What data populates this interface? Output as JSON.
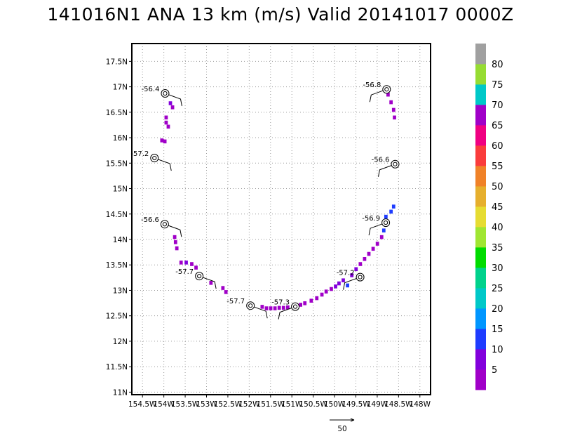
{
  "title": "141016N1 ANA 13 km (m/s) Valid 20141017 0000Z",
  "chart_data": {
    "type": "scatter",
    "title": "141016N1 ANA 13 km (m/s) Valid 20141017 0000Z",
    "xlabel": "",
    "ylabel": "",
    "grid": true,
    "xlim": [
      -154.75,
      -147.75
    ],
    "ylim": [
      10.95,
      17.85
    ],
    "x_ticks": [
      -154.5,
      -154,
      -153.5,
      -153,
      -152.5,
      -152,
      -151.5,
      -151,
      -150.5,
      -150,
      -149.5,
      -149,
      -148.5,
      -148
    ],
    "x_tick_labels": [
      "154.5W",
      "154W",
      "153.5W",
      "153W",
      "152.5W",
      "152W",
      "151.5W",
      "151W",
      "150.5W",
      "150W",
      "149.5W",
      "149W",
      "148.5W",
      "148W"
    ],
    "y_ticks": [
      11,
      11.5,
      12,
      12.5,
      13,
      13.5,
      14,
      14.5,
      15,
      15.5,
      16,
      16.5,
      17,
      17.5
    ],
    "y_tick_labels": [
      "11N",
      "11.5N",
      "12N",
      "12.5N",
      "13N",
      "13.5N",
      "14N",
      "14.5N",
      "15N",
      "15.5N",
      "16N",
      "16.5N",
      "17N",
      "17.5N"
    ],
    "colorbar": {
      "labels": [
        "5",
        "10",
        "15",
        "20",
        "25",
        "30",
        "35",
        "40",
        "45",
        "50",
        "55",
        "60",
        "65",
        "70",
        "75",
        "80"
      ],
      "colors": [
        "#a000c8",
        "#8200dc",
        "#1e3cff",
        "#0096ff",
        "#00c8c8",
        "#00d28c",
        "#00dc00",
        "#a0e632",
        "#e6dc32",
        "#e6af2d",
        "#f08228",
        "#fa3c3c",
        "#f00082",
        "#a000c8",
        "#00c8c8",
        "#96dc32",
        "#a0a0a0"
      ]
    },
    "wind_arrow_label": "50",
    "observations": [
      {
        "lon": -153.97,
        "lat": 16.87,
        "label": "-56.4"
      },
      {
        "lon": -154.22,
        "lat": 15.6,
        "label": "-57.2"
      },
      {
        "lon": -153.98,
        "lat": 14.3,
        "label": "-56.6"
      },
      {
        "lon": -153.17,
        "lat": 13.28,
        "label": "-57.7"
      },
      {
        "lon": -151.97,
        "lat": 12.7,
        "label": "-57.7"
      },
      {
        "lon": -150.92,
        "lat": 12.68,
        "label": "-57.3"
      },
      {
        "lon": -149.4,
        "lat": 13.26,
        "label": "-57.2"
      },
      {
        "lon": -148.8,
        "lat": 14.33,
        "label": "-56.9"
      },
      {
        "lon": -148.58,
        "lat": 15.48,
        "label": "-56.6"
      },
      {
        "lon": -148.78,
        "lat": 16.95,
        "label": "-56.8"
      }
    ],
    "swath_cells": [
      {
        "lon": -153.85,
        "lat": 16.68,
        "v": 1
      },
      {
        "lon": -153.8,
        "lat": 16.6,
        "v": 0
      },
      {
        "lon": -153.95,
        "lat": 16.4,
        "v": 0
      },
      {
        "lon": -153.95,
        "lat": 16.3,
        "v": 0
      },
      {
        "lon": -153.9,
        "lat": 16.22,
        "v": 0
      },
      {
        "lon": -154.05,
        "lat": 15.95,
        "v": 0
      },
      {
        "lon": -153.98,
        "lat": 15.93,
        "v": 0
      },
      {
        "lon": -153.75,
        "lat": 14.05,
        "v": 0
      },
      {
        "lon": -153.73,
        "lat": 13.95,
        "v": 0
      },
      {
        "lon": -153.7,
        "lat": 13.83,
        "v": 0
      },
      {
        "lon": -153.6,
        "lat": 13.55,
        "v": 0
      },
      {
        "lon": -153.48,
        "lat": 13.55,
        "v": 1
      },
      {
        "lon": -153.35,
        "lat": 13.52,
        "v": 0
      },
      {
        "lon": -153.25,
        "lat": 13.45,
        "v": 0
      },
      {
        "lon": -152.9,
        "lat": 13.15,
        "v": 0
      },
      {
        "lon": -152.62,
        "lat": 13.05,
        "v": 0
      },
      {
        "lon": -152.55,
        "lat": 12.97,
        "v": 0
      },
      {
        "lon": -151.7,
        "lat": 12.68,
        "v": 0
      },
      {
        "lon": -151.6,
        "lat": 12.65,
        "v": 0
      },
      {
        "lon": -151.5,
        "lat": 12.65,
        "v": 0
      },
      {
        "lon": -151.4,
        "lat": 12.65,
        "v": 0
      },
      {
        "lon": -151.3,
        "lat": 12.66,
        "v": 0
      },
      {
        "lon": -151.2,
        "lat": 12.66,
        "v": 0
      },
      {
        "lon": -151.1,
        "lat": 12.67,
        "v": 0
      },
      {
        "lon": -150.8,
        "lat": 12.72,
        "v": 0
      },
      {
        "lon": -150.7,
        "lat": 12.75,
        "v": 0
      },
      {
        "lon": -150.55,
        "lat": 12.8,
        "v": 0
      },
      {
        "lon": -150.42,
        "lat": 12.85,
        "v": 0
      },
      {
        "lon": -150.3,
        "lat": 12.92,
        "v": 0
      },
      {
        "lon": -150.2,
        "lat": 12.98,
        "v": 0
      },
      {
        "lon": -150.08,
        "lat": 13.03,
        "v": 0
      },
      {
        "lon": -149.98,
        "lat": 13.08,
        "v": 1
      },
      {
        "lon": -149.9,
        "lat": 13.14,
        "v": 1
      },
      {
        "lon": -149.8,
        "lat": 13.2,
        "v": 1
      },
      {
        "lon": -149.7,
        "lat": 13.1,
        "v": 2
      },
      {
        "lon": -149.6,
        "lat": 13.3,
        "v": 1
      },
      {
        "lon": -149.5,
        "lat": 13.42,
        "v": 1
      },
      {
        "lon": -149.4,
        "lat": 13.52,
        "v": 0
      },
      {
        "lon": -149.3,
        "lat": 13.62,
        "v": 0
      },
      {
        "lon": -149.2,
        "lat": 13.72,
        "v": 0
      },
      {
        "lon": -149.1,
        "lat": 13.82,
        "v": 0
      },
      {
        "lon": -149.0,
        "lat": 13.92,
        "v": 0
      },
      {
        "lon": -148.9,
        "lat": 14.05,
        "v": 0
      },
      {
        "lon": -148.85,
        "lat": 14.18,
        "v": 2
      },
      {
        "lon": -148.8,
        "lat": 14.45,
        "v": 2
      },
      {
        "lon": -148.68,
        "lat": 14.55,
        "v": 2
      },
      {
        "lon": -148.62,
        "lat": 14.65,
        "v": 2
      },
      {
        "lon": -148.75,
        "lat": 16.85,
        "v": 0
      },
      {
        "lon": -148.68,
        "lat": 16.7,
        "v": 0
      },
      {
        "lon": -148.62,
        "lat": 16.55,
        "v": 0
      },
      {
        "lon": -148.6,
        "lat": 16.4,
        "v": 0
      }
    ]
  }
}
